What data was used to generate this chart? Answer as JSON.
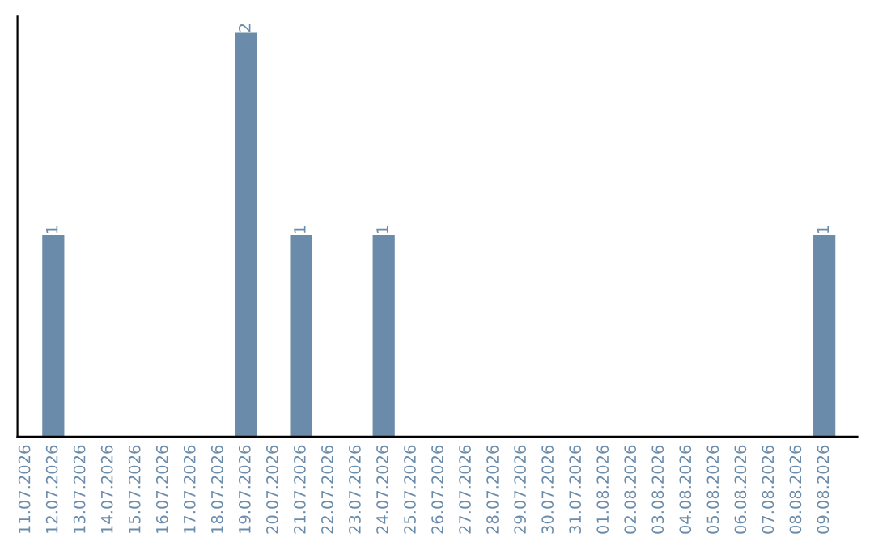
{
  "chart_data": {
    "type": "bar",
    "categories": [
      "11.07.2026",
      "12.07.2026",
      "13.07.2026",
      "14.07.2026",
      "15.07.2026",
      "16.07.2026",
      "17.07.2026",
      "18.07.2026",
      "19.07.2026",
      "20.07.2026",
      "21.07.2026",
      "22.07.2026",
      "23.07.2026",
      "24.07.2026",
      "25.07.2026",
      "26.07.2026",
      "27.07.2026",
      "28.07.2026",
      "29.07.2026",
      "30.07.2026",
      "31.07.2026",
      "01.08.2026",
      "02.08.2026",
      "03.08.2026",
      "04.08.2026",
      "05.08.2026",
      "06.08.2026",
      "07.08.2026",
      "08.08.2026",
      "09.08.2026"
    ],
    "values": [
      0,
      1,
      0,
      0,
      0,
      0,
      0,
      0,
      2,
      0,
      1,
      0,
      0,
      1,
      0,
      0,
      0,
      0,
      0,
      0,
      0,
      0,
      0,
      0,
      0,
      0,
      0,
      0,
      0,
      1
    ],
    "value_labels": [
      null,
      "1",
      null,
      null,
      null,
      null,
      null,
      null,
      "2",
      null,
      "1",
      null,
      null,
      "1",
      null,
      null,
      null,
      null,
      null,
      null,
      null,
      null,
      null,
      null,
      null,
      null,
      null,
      null,
      null,
      "1"
    ],
    "color": "#6a8caa",
    "ylim": [
      0,
      2.08
    ],
    "tick_labels": "x",
    "grid": false,
    "legend": false
  }
}
